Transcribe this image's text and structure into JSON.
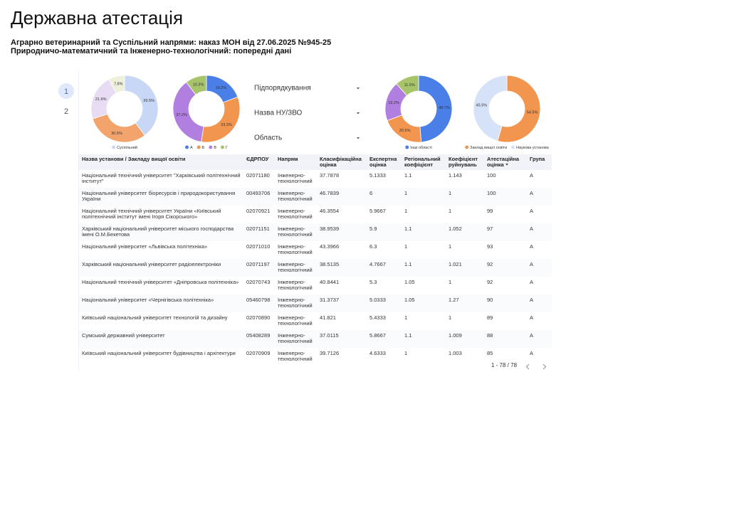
{
  "header": {
    "title": "Державна атестація",
    "subtitle_1": "Аграрно ветеринарний та Суспільний напрями: наказ МОН від 27.06.2025 №945-25",
    "subtitle_2": "Природничо-математичний та Інженерно-технологічний: попередні дані"
  },
  "pages": [
    "1",
    "2"
  ],
  "chart_data": [
    {
      "type": "donut",
      "categories": [
        "Суспільний",
        null,
        null,
        null
      ],
      "values": [
        39.5,
        30.5,
        21.9,
        7.8
      ],
      "value_labels": [
        "39.5%",
        "30.5%",
        "21.9%",
        "7.8%"
      ],
      "colors": [
        "#c8d7f6",
        "#f2a46c",
        "#e8dcf4",
        "#eef0dc"
      ]
    },
    {
      "type": "donut",
      "categories": [
        "А",
        "Б",
        "В",
        "Г"
      ],
      "values": [
        19.2,
        33.3,
        37.2,
        10.3
      ],
      "value_labels": [
        "19.2%",
        "33.3%",
        "37.2%",
        "10.3%"
      ],
      "colors": [
        "#4a7fe8",
        "#f2954f",
        "#b07fe0",
        "#a8c46a"
      ]
    },
    {
      "type": "donut",
      "categories": [
        "Інші області",
        null,
        null,
        null
      ],
      "values": [
        48.7,
        20.5,
        19.2,
        11.5
      ],
      "value_labels": [
        "48.7%",
        "20.5%",
        "19.2%",
        "11.5%"
      ],
      "colors": [
        "#4a7fe8",
        "#f2954f",
        "#b07fe0",
        "#a8c46a"
      ]
    },
    {
      "type": "donut",
      "categories": [
        "Заклад вищої освіти",
        "Наукова установа"
      ],
      "values": [
        54.5,
        45.5
      ],
      "value_labels": [
        "54.5%",
        "45.5%"
      ],
      "colors": [
        "#f2954f",
        "#d6e2f8"
      ]
    }
  ],
  "filters": [
    "Підпорядкування",
    "Назва НУ/ЗВО",
    "Область"
  ],
  "table": {
    "columns": [
      "Назва установи / Закладу вищої освіти",
      "ЄДРПОУ",
      "Напрям",
      "Класифікаційна оцінка",
      "Експертна оцінка",
      "Регіональний коефіцієнт",
      "Коефіцієнт руйнувань",
      "Атестаційна оцінка",
      "Група"
    ],
    "rows": [
      [
        "Національний технічний університет \"Харківський політехнічний інститут\"",
        "02071180",
        "Інженерно-технологічний",
        "37.7878",
        "5.1333",
        "1.1",
        "1.143",
        "100",
        "А"
      ],
      [
        "Національний університет біоресурсів і природокористування України",
        "00493706",
        "Інженерно-технологічний",
        "46.7839",
        "6",
        "1",
        "1",
        "100",
        "А"
      ],
      [
        "Національний технічний університет України «Київський політехнічний інститут імені Ігоря Сікорського»",
        "02070921",
        "Інженерно-технологічний",
        "46.3554",
        "5.9667",
        "1",
        "1",
        "99",
        "А"
      ],
      [
        "Харківський національний університет міського господарства імені О.М.Бекетова",
        "02071151",
        "Інженерно-технологічний",
        "38.9539",
        "5.9",
        "1.1",
        "1.052",
        "97",
        "А"
      ],
      [
        "Національний університет «Львівська політехніка»",
        "02071010",
        "Інженерно-технологічний",
        "43.3966",
        "6.3",
        "1",
        "1",
        "93",
        "А"
      ],
      [
        "Харківський національний університет радіоелектроніки",
        "02071197",
        "Інженерно-технологічний",
        "38.5135",
        "4.7667",
        "1.1",
        "1.021",
        "92",
        "А"
      ],
      [
        "Національний технічний університет «Дніпровська політехніка»",
        "02070743",
        "Інженерно-технологічний",
        "40.8441",
        "5.3",
        "1.05",
        "1",
        "92",
        "А"
      ],
      [
        "Національний університет «Чернігівська політехніка»",
        "05460798",
        "Інженерно-технологічний",
        "31.3737",
        "5.0333",
        "1.05",
        "1.27",
        "90",
        "А"
      ],
      [
        "Київський національний університет технологій та дизайну",
        "02070890",
        "Інженерно-технологічний",
        "41.821",
        "5.4333",
        "1",
        "1",
        "89",
        "А"
      ],
      [
        "Сумський державний університет",
        "05408289",
        "Інженерно-технологічний",
        "37.0115",
        "5.8667",
        "1.1",
        "1.009",
        "88",
        "А"
      ],
      [
        "Київський національний університет будівництва і архітектури",
        "02070909",
        "Інженерно-технологічний",
        "39.7126",
        "4.6333",
        "1",
        "1.003",
        "85",
        "А"
      ]
    ]
  },
  "pagination": "1 - 78 / 78"
}
